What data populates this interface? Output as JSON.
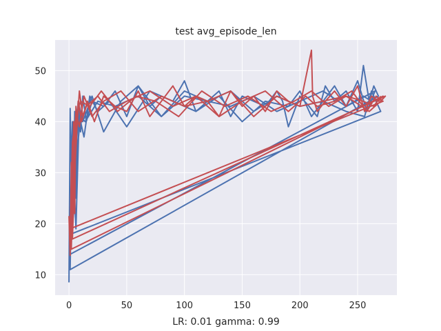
{
  "chart_data": {
    "type": "line",
    "title": "test avg_episode_len",
    "xlabel": "LR: 0.01 gamma: 0.99",
    "ylabel": "",
    "xlim": [
      -12,
      284
    ],
    "ylim": [
      6,
      56
    ],
    "xticks": [
      0,
      50,
      100,
      150,
      200,
      250
    ],
    "yticks": [
      10,
      20,
      30,
      40,
      50
    ],
    "grid": true,
    "background": "#eaeaf2",
    "series": [
      {
        "color": "#4c72b0",
        "x": [
          0,
          1,
          2,
          3,
          4,
          5,
          6,
          7,
          8,
          10,
          12,
          15,
          20,
          30,
          40,
          50,
          60,
          70,
          80,
          90,
          100,
          110,
          120,
          130,
          140,
          150,
          160,
          170,
          180,
          185,
          190,
          200,
          208,
          215,
          222,
          230,
          240,
          250,
          255,
          260,
          264,
          268,
          1,
          3,
          5,
          8,
          10,
          13,
          18,
          25,
          35,
          50,
          70,
          90,
          110,
          130,
          150,
          170,
          190,
          200,
          210,
          220,
          230,
          240,
          250,
          258,
          265,
          1,
          2,
          3,
          6,
          9,
          12,
          20,
          30,
          45,
          60,
          80,
          100,
          120,
          140,
          160,
          180,
          200,
          220,
          240,
          256,
          262,
          266,
          270,
          2,
          4,
          7,
          10,
          14,
          25,
          40,
          60,
          80,
          100,
          120,
          140,
          160,
          180,
          200,
          220,
          240,
          255,
          262
        ],
        "y": [
          8.5,
          42.6,
          31,
          40,
          29,
          42,
          25,
          41,
          44,
          38,
          45,
          40,
          44,
          43,
          46,
          41,
          47,
          43,
          45,
          44,
          48,
          42,
          44,
          46,
          41,
          45,
          44,
          43,
          46,
          44,
          39,
          45,
          43,
          41,
          47,
          44,
          46,
          42,
          51,
          44,
          47,
          45,
          11,
          38,
          28,
          42,
          40,
          37,
          45,
          42,
          44,
          39,
          46,
          44,
          42,
          45,
          40,
          44,
          43,
          46,
          41,
          44,
          47,
          43,
          48,
          42,
          46,
          14,
          20,
          36,
          19,
          43,
          40,
          45,
          38,
          44,
          47,
          41,
          45,
          44,
          46,
          42,
          45,
          43,
          44,
          42,
          41,
          46,
          44,
          42,
          18,
          22,
          34,
          41,
          40,
          44,
          43,
          45,
          41,
          46,
          44,
          43,
          45,
          42,
          44,
          46,
          43,
          45,
          44
        ]
      },
      {
        "color": "#c44e52",
        "x": [
          0,
          1,
          2,
          3,
          4,
          5,
          6,
          7,
          9,
          12,
          16,
          22,
          30,
          40,
          50,
          60,
          70,
          80,
          90,
          100,
          110,
          120,
          130,
          140,
          150,
          160,
          170,
          180,
          190,
          200,
          210,
          211,
          215,
          222,
          230,
          240,
          250,
          256,
          262,
          268,
          272,
          2,
          4,
          6,
          9,
          13,
          20,
          30,
          45,
          60,
          80,
          100,
          120,
          140,
          160,
          180,
          200,
          220,
          240,
          260,
          270,
          274,
          3,
          5,
          8,
          11,
          15,
          25,
          35,
          50,
          70,
          90,
          110,
          130,
          150,
          170,
          190,
          205,
          215,
          230,
          245,
          258,
          266,
          272,
          1,
          3,
          6,
          10,
          18,
          28,
          42,
          58,
          75,
          95,
          115,
          135,
          155,
          175,
          195,
          210,
          225,
          240,
          255,
          264,
          270
        ],
        "y": [
          21.5,
          13.8,
          32,
          17,
          40,
          22,
          43,
          39,
          46,
          41,
          44,
          40,
          45,
          43,
          42,
          46,
          41,
          44,
          47,
          43,
          45,
          44,
          41,
          46,
          43,
          45,
          42,
          46,
          44,
          43,
          54,
          45,
          42,
          44,
          46,
          43,
          47,
          42,
          45,
          44,
          45,
          15,
          34,
          42,
          39,
          45,
          41,
          44,
          46,
          42,
          45,
          43,
          44,
          46,
          41,
          45,
          43,
          44,
          45,
          42,
          44,
          45,
          17,
          30,
          44,
          40,
          43,
          45,
          42,
          44,
          46,
          43,
          45,
          41,
          44,
          46,
          42,
          45,
          43,
          44,
          46,
          42,
          45,
          44,
          19,
          36,
          41,
          44,
          43,
          46,
          42,
          45,
          44,
          41,
          46,
          43,
          45,
          42,
          44,
          46,
          43,
          45,
          44,
          43,
          45
        ]
      }
    ]
  }
}
